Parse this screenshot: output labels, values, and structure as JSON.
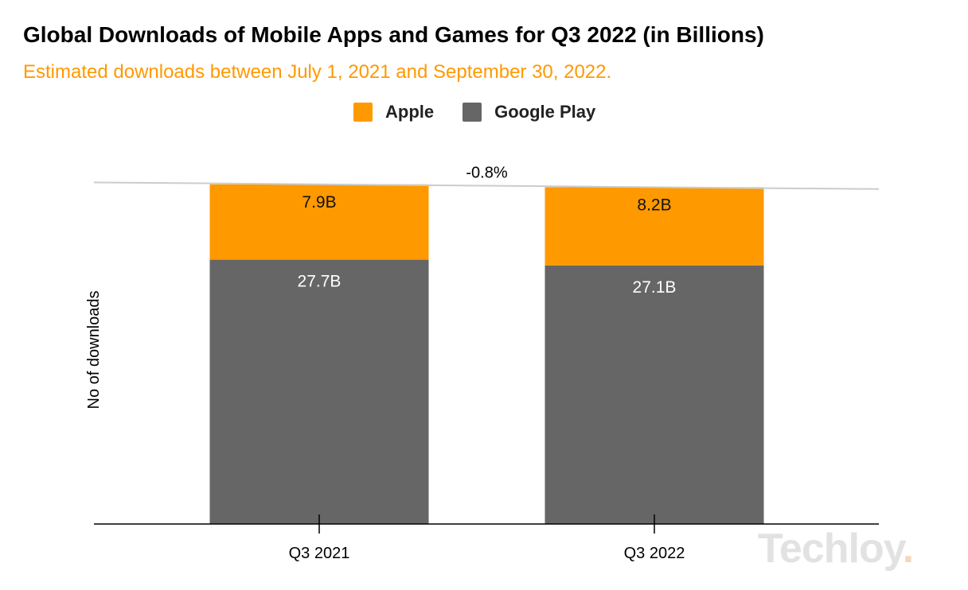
{
  "title": "Global Downloads of Mobile Apps and Games for Q3 2022 (in Billions)",
  "subtitle": "Estimated downloads between July 1, 2021 and September 30, 2022.",
  "watermark": {
    "text": "Techloy",
    "dot": "."
  },
  "colors": {
    "apple": "#ff9900",
    "google": "#666666",
    "axis": "#000000",
    "trend": "#cccccc"
  },
  "chart_data": {
    "type": "bar",
    "stacked": true,
    "title": "Global Downloads of Mobile Apps and Games for Q3 2022 (in Billions)",
    "subtitle": "Estimated downloads between July 1, 2021 and September 30, 2022.",
    "categories": [
      "Q3 2021",
      "Q3 2022"
    ],
    "series": [
      {
        "name": "Google Play",
        "values": [
          27.7,
          27.1
        ],
        "labels": [
          "27.7B",
          "27.1B"
        ],
        "color": "#666666"
      },
      {
        "name": "Apple",
        "values": [
          7.9,
          8.2
        ],
        "labels": [
          "7.9B",
          "8.2B"
        ],
        "color": "#ff9900"
      }
    ],
    "xlabel": "",
    "ylabel": "No of downloads",
    "ylim": [
      0,
      36
    ],
    "trend_annotation": "-0.8%",
    "legend_position": "top",
    "grid": false
  }
}
